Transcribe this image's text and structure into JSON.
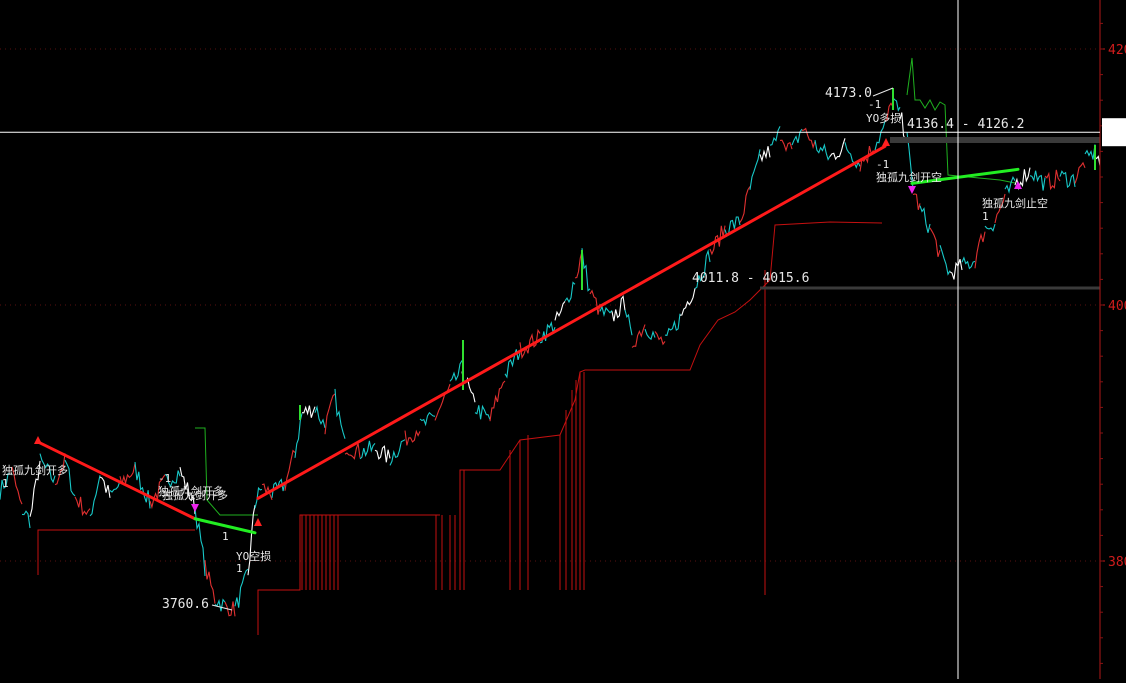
{
  "chart_data": {
    "type": "line",
    "chart_kind": "candlestick",
    "y_axis": {
      "position": "right",
      "ticks": [
        4200,
        4000,
        3800
      ],
      "tick_labels": [
        "420",
        "400",
        "380"
      ],
      "ylim": [
        3705,
        4250
      ]
    },
    "crosshair": {
      "price": 4135
    },
    "grid": true,
    "price_path": [
      [
        0,
        3855
      ],
      [
        12,
        3870
      ],
      [
        22,
        3840
      ],
      [
        30,
        3832
      ],
      [
        40,
        3878
      ],
      [
        55,
        3862
      ],
      [
        65,
        3878
      ],
      [
        75,
        3850
      ],
      [
        90,
        3835
      ],
      [
        100,
        3868
      ],
      [
        110,
        3850
      ],
      [
        120,
        3860
      ],
      [
        135,
        3872
      ],
      [
        150,
        3845
      ],
      [
        165,
        3862
      ],
      [
        180,
        3870
      ],
      [
        195,
        3842
      ],
      [
        205,
        3795
      ],
      [
        215,
        3770
      ],
      [
        225,
        3765
      ],
      [
        235,
        3762
      ],
      [
        248,
        3790
      ],
      [
        255,
        3845
      ],
      [
        262,
        3858
      ],
      [
        272,
        3852
      ],
      [
        285,
        3860
      ],
      [
        295,
        3885
      ],
      [
        302,
        3915
      ],
      [
        315,
        3920
      ],
      [
        325,
        3905
      ],
      [
        335,
        3928
      ],
      [
        345,
        3890
      ],
      [
        360,
        3885
      ],
      [
        375,
        3888
      ],
      [
        390,
        3880
      ],
      [
        405,
        3895
      ],
      [
        420,
        3905
      ],
      [
        435,
        3912
      ],
      [
        450,
        3935
      ],
      [
        462,
        3950
      ],
      [
        475,
        3920
      ],
      [
        490,
        3910
      ],
      [
        505,
        3945
      ],
      [
        520,
        3965
      ],
      [
        540,
        3975
      ],
      [
        555,
        3985
      ],
      [
        565,
        4000
      ],
      [
        575,
        4020
      ],
      [
        582,
        4040
      ],
      [
        590,
        4010
      ],
      [
        600,
        3995
      ],
      [
        612,
        3990
      ],
      [
        625,
        4002
      ],
      [
        632,
        3970
      ],
      [
        645,
        3985
      ],
      [
        655,
        3975
      ],
      [
        665,
        3970
      ],
      [
        680,
        3990
      ],
      [
        695,
        4015
      ],
      [
        710,
        4040
      ],
      [
        725,
        4060
      ],
      [
        740,
        4065
      ],
      [
        750,
        4090
      ],
      [
        760,
        4115
      ],
      [
        770,
        4120
      ],
      [
        780,
        4135
      ],
      [
        792,
        4120
      ],
      [
        802,
        4138
      ],
      [
        815,
        4125
      ],
      [
        830,
        4115
      ],
      [
        845,
        4125
      ],
      [
        860,
        4110
      ],
      [
        875,
        4125
      ],
      [
        885,
        4140
      ],
      [
        893,
        4160
      ],
      [
        900,
        4148
      ],
      [
        907,
        4130
      ],
      [
        913,
        4090
      ],
      [
        920,
        4075
      ],
      [
        930,
        4060
      ],
      [
        940,
        4040
      ],
      [
        950,
        4025
      ],
      [
        962,
        4030
      ],
      [
        975,
        4035
      ],
      [
        985,
        4060
      ],
      [
        995,
        4065
      ],
      [
        1005,
        4085
      ],
      [
        1015,
        4095
      ],
      [
        1030,
        4105
      ],
      [
        1045,
        4095
      ],
      [
        1060,
        4100
      ],
      [
        1075,
        4098
      ],
      [
        1085,
        4112
      ],
      [
        1095,
        4120
      ],
      [
        1100,
        4110
      ]
    ],
    "level_labels": [
      "4173.0",
      "4136.4 - 4126.2",
      "4011.8 - 4015.6",
      "3760.6"
    ],
    "signal_labels": [
      "独孤九剑开多",
      "1",
      "独孤九剑开多",
      "-1",
      "独孤九剑开多",
      "1",
      "YO空损",
      "1",
      "-1",
      "YO多损",
      "-1",
      "独孤九剑开空",
      "独孤九剑止空",
      "1"
    ],
    "trend_lines": [
      {
        "color": "#ff1a1a",
        "from": [
          38,
          3893
        ],
        "to": [
          195,
          3833
        ]
      },
      {
        "color": "#ff1a1a",
        "from": [
          258,
          3849
        ],
        "to": [
          885,
          4124
        ]
      },
      {
        "color": "#22ee22",
        "from": [
          195,
          3833
        ],
        "to": [
          255,
          3822
        ]
      },
      {
        "color": "#22ee22",
        "from": [
          912,
          4095
        ],
        "to": [
          1018,
          4106
        ]
      }
    ]
  }
}
